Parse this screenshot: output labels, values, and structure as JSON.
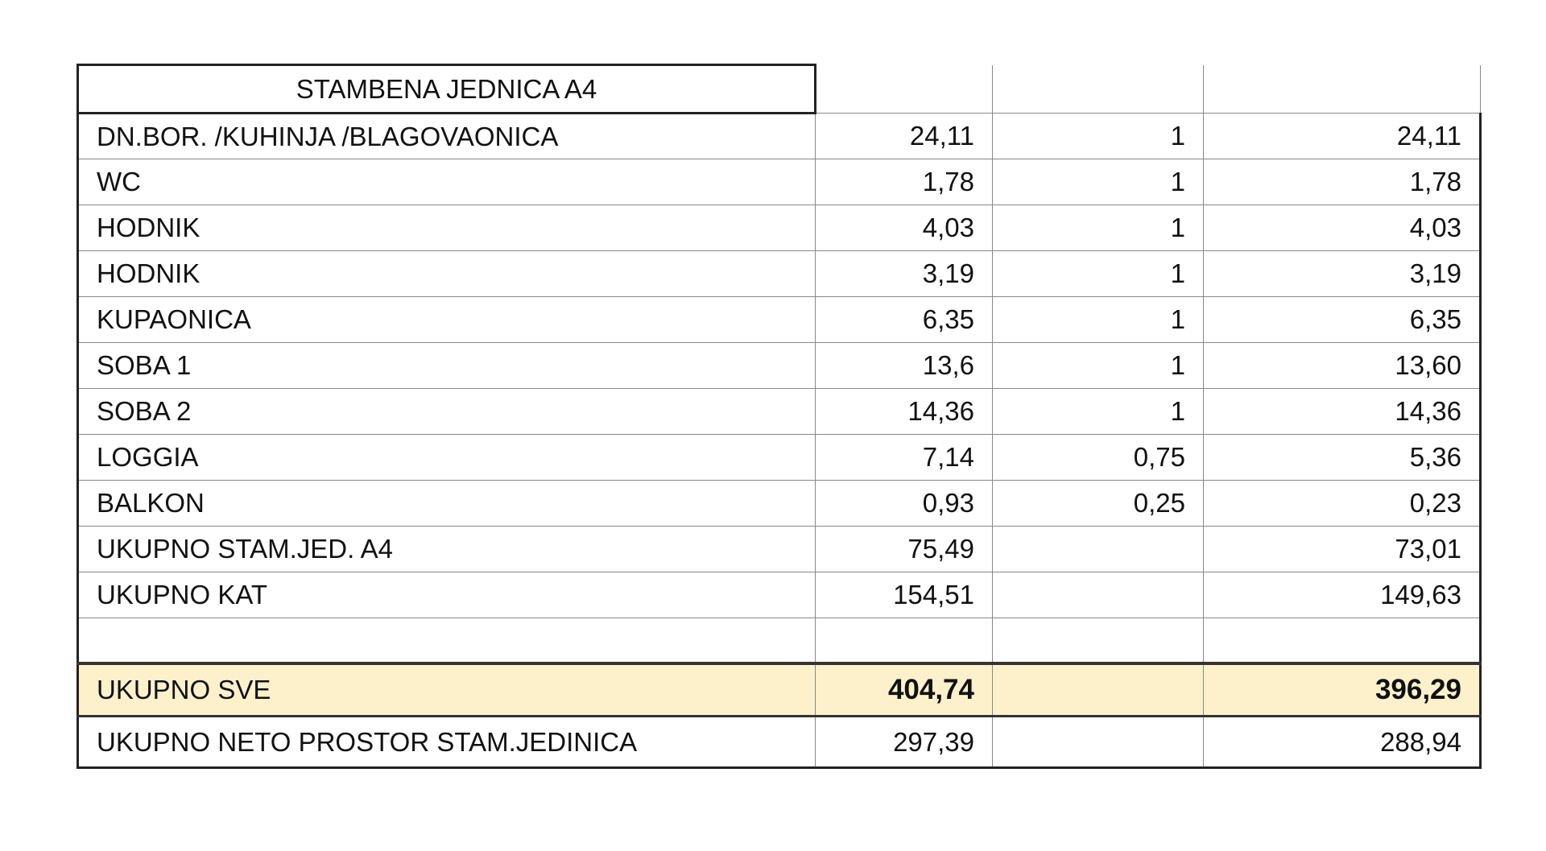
{
  "table": {
    "title": "STAMBENA JEDNICA A4",
    "rows": [
      {
        "name": "DN.BOR. /KUHINJA /BLAGOVAONICA",
        "area": "24,11",
        "coef": "1",
        "net": "24,11"
      },
      {
        "name": "WC",
        "area": "1,78",
        "coef": "1",
        "net": "1,78"
      },
      {
        "name": "HODNIK",
        "area": "4,03",
        "coef": "1",
        "net": "4,03"
      },
      {
        "name": "HODNIK",
        "area": "3,19",
        "coef": "1",
        "net": "3,19"
      },
      {
        "name": "KUPAONICA",
        "area": "6,35",
        "coef": "1",
        "net": "6,35"
      },
      {
        "name": "SOBA 1",
        "area": "13,6",
        "coef": "1",
        "net": "13,60"
      },
      {
        "name": "SOBA 2",
        "area": "14,36",
        "coef": "1",
        "net": "14,36"
      },
      {
        "name": "LOGGIA",
        "area": "7,14",
        "coef": "0,75",
        "net": "5,36"
      },
      {
        "name": "BALKON",
        "area": "0,93",
        "coef": "0,25",
        "net": "0,23"
      },
      {
        "name": "UKUPNO STAM.JED.  A4",
        "area": "75,49",
        "coef": "",
        "net": "73,01"
      },
      {
        "name": "UKUPNO KAT",
        "area": "154,51",
        "coef": "",
        "net": "149,63"
      }
    ],
    "total": {
      "name": "UKUPNO SVE",
      "area": "404,74",
      "net": "396,29",
      "highlight_color": "#fdf1cc"
    },
    "net_total": {
      "name": "UKUPNO NETO PROSTOR STAM.JEDINICA",
      "area": "297,39",
      "net": "288,94"
    }
  }
}
